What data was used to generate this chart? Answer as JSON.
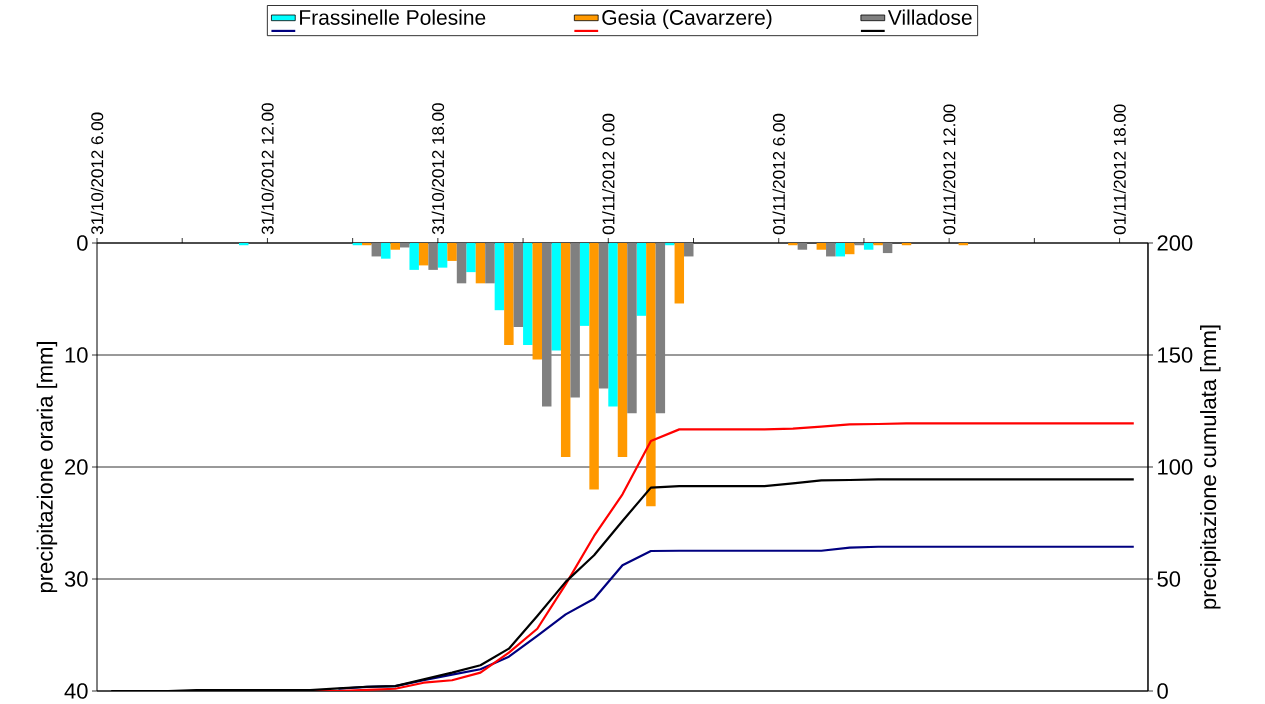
{
  "chart_data": {
    "type": "bar",
    "ylabel": "precipitazione oraria [mm]",
    "y2label": "precipitazione cumulata [mm]",
    "x": [
      "2012-10-31T06:30",
      "2012-10-31T07:30",
      "2012-10-31T08:30",
      "2012-10-31T09:30",
      "2012-10-31T10:30",
      "2012-10-31T11:30",
      "2012-10-31T12:30",
      "2012-10-31T13:30",
      "2012-10-31T14:30",
      "2012-10-31T15:30",
      "2012-10-31T16:30",
      "2012-10-31T17:30",
      "2012-10-31T18:30",
      "2012-10-31T19:30",
      "2012-10-31T20:30",
      "2012-10-31T21:30",
      "2012-10-31T22:30",
      "2012-10-31T23:30",
      "2012-11-01T00:30",
      "2012-11-01T01:30",
      "2012-11-01T02:30",
      "2012-11-01T03:30",
      "2012-11-01T04:30",
      "2012-11-01T05:30",
      "2012-11-01T06:30",
      "2012-11-01T07:30",
      "2012-11-01T08:30",
      "2012-11-01T09:30",
      "2012-11-01T10:30",
      "2012-11-01T11:30",
      "2012-11-01T12:30",
      "2012-11-01T13:30",
      "2012-11-01T14:30",
      "2012-11-01T15:30",
      "2012-11-01T16:30",
      "2012-11-01T17:30",
      "2012-11-01T18:30"
    ],
    "xlim": [
      "2012-10-31T06:00",
      "2012-11-01T19:00"
    ],
    "xticks": [
      {
        "value": "2012-10-31T06:00",
        "label": "31/10/2012 6.00"
      },
      {
        "value": "2012-10-31T09:00",
        "label": null
      },
      {
        "value": "2012-10-31T12:00",
        "label": "31/10/2012 12.00"
      },
      {
        "value": "2012-10-31T15:00",
        "label": null
      },
      {
        "value": "2012-10-31T18:00",
        "label": "31/10/2012 18.00"
      },
      {
        "value": "2012-10-31T21:00",
        "label": null
      },
      {
        "value": "2012-11-01T00:00",
        "label": "01/11/2012 0.00"
      },
      {
        "value": "2012-11-01T03:00",
        "label": null
      },
      {
        "value": "2012-11-01T06:00",
        "label": "01/11/2012 6.00"
      },
      {
        "value": "2012-11-01T09:00",
        "label": null
      },
      {
        "value": "2012-11-01T12:00",
        "label": "01/11/2012 12.00"
      },
      {
        "value": "2012-11-01T15:00",
        "label": null
      },
      {
        "value": "2012-11-01T18:00",
        "label": "01/11/2012 18.00"
      }
    ],
    "ylim": [
      40,
      0
    ],
    "yticks": [
      0,
      10,
      20,
      30,
      40
    ],
    "y2lim": [
      0,
      200
    ],
    "y2ticks": [
      0,
      50,
      100,
      150,
      200
    ],
    "grid": "y",
    "legend": "top",
    "series": [
      {
        "name": "Frassinelle Polesine",
        "color": "#00ffff",
        "values": [
          0,
          0,
          0,
          0,
          0,
          0.2,
          0,
          0,
          0,
          0.2,
          1.4,
          2.4,
          2.2,
          2.6,
          6.0,
          9.1,
          9.6,
          7.4,
          14.6,
          6.5,
          0.2,
          0,
          0,
          0,
          0,
          0,
          1.2,
          0.6,
          0,
          0,
          0,
          0,
          0,
          0,
          0,
          0,
          0
        ]
      },
      {
        "name": "Gesia (Cavarzere)",
        "color": "#ff9900",
        "values": [
          0,
          0,
          0,
          0,
          0,
          0,
          0,
          0,
          0,
          0.2,
          0.6,
          2.0,
          1.6,
          3.6,
          9.1,
          10.4,
          19.1,
          22.0,
          19.1,
          23.5,
          5.4,
          0,
          0,
          0,
          0.2,
          0.6,
          1.0,
          0.2,
          0.2,
          0,
          0.2,
          0,
          0,
          0,
          0,
          0,
          0
        ]
      },
      {
        "name": "Villadose",
        "color": "#808080",
        "values": [
          0,
          0,
          0,
          0,
          0,
          0,
          0,
          0,
          0,
          1.2,
          0.4,
          2.4,
          3.6,
          3.6,
          7.5,
          14.6,
          13.8,
          13.0,
          15.2,
          15.2,
          1.2,
          0,
          0,
          0,
          0.6,
          1.2,
          0.2,
          0.9,
          0,
          0,
          0,
          0,
          0,
          0,
          0,
          0,
          0
        ]
      },
      {
        "type": "line",
        "axis": "y2",
        "color": "#000080",
        "values": [
          null,
          null,
          null,
          null,
          null,
          null,
          null,
          null,
          1.0,
          1.8,
          2.2,
          4.8,
          7.3,
          9.7,
          15.3,
          24.6,
          34.2,
          41.2,
          56.1,
          62.5,
          62.6,
          62.6,
          62.6,
          62.6,
          62.6,
          62.6,
          64.0,
          64.4,
          64.4,
          64.4,
          64.4,
          64.4,
          64.4,
          64.4,
          64.4,
          64.4,
          64.4
        ]
      },
      {
        "type": "line",
        "axis": "y2",
        "color": "#ff0000",
        "values": [
          null,
          null,
          null,
          null,
          null,
          null,
          0,
          0,
          0,
          0.5,
          1.0,
          3.7,
          4.8,
          8.2,
          17.1,
          27.8,
          47.6,
          69.2,
          87.8,
          111.6,
          116.8,
          116.8,
          116.8,
          116.8,
          117.1,
          118.0,
          119.0,
          119.2,
          119.5,
          119.5,
          119.5,
          119.5,
          119.5,
          119.5,
          119.5,
          119.5,
          119.5
        ]
      },
      {
        "type": "line",
        "axis": "y2",
        "color": "#000000",
        "values": [
          0,
          0,
          0,
          0.4,
          0.4,
          0.4,
          0.4,
          0.4,
          1.2,
          1.9,
          2.2,
          5.2,
          8.2,
          11.5,
          18.9,
          33.5,
          48.7,
          60.6,
          75.9,
          90.8,
          91.5,
          91.5,
          91.5,
          91.5,
          92.7,
          94.0,
          94.2,
          94.5,
          94.5,
          94.5,
          94.5,
          94.5,
          94.5,
          94.5,
          94.5,
          94.5,
          94.5
        ]
      }
    ]
  }
}
